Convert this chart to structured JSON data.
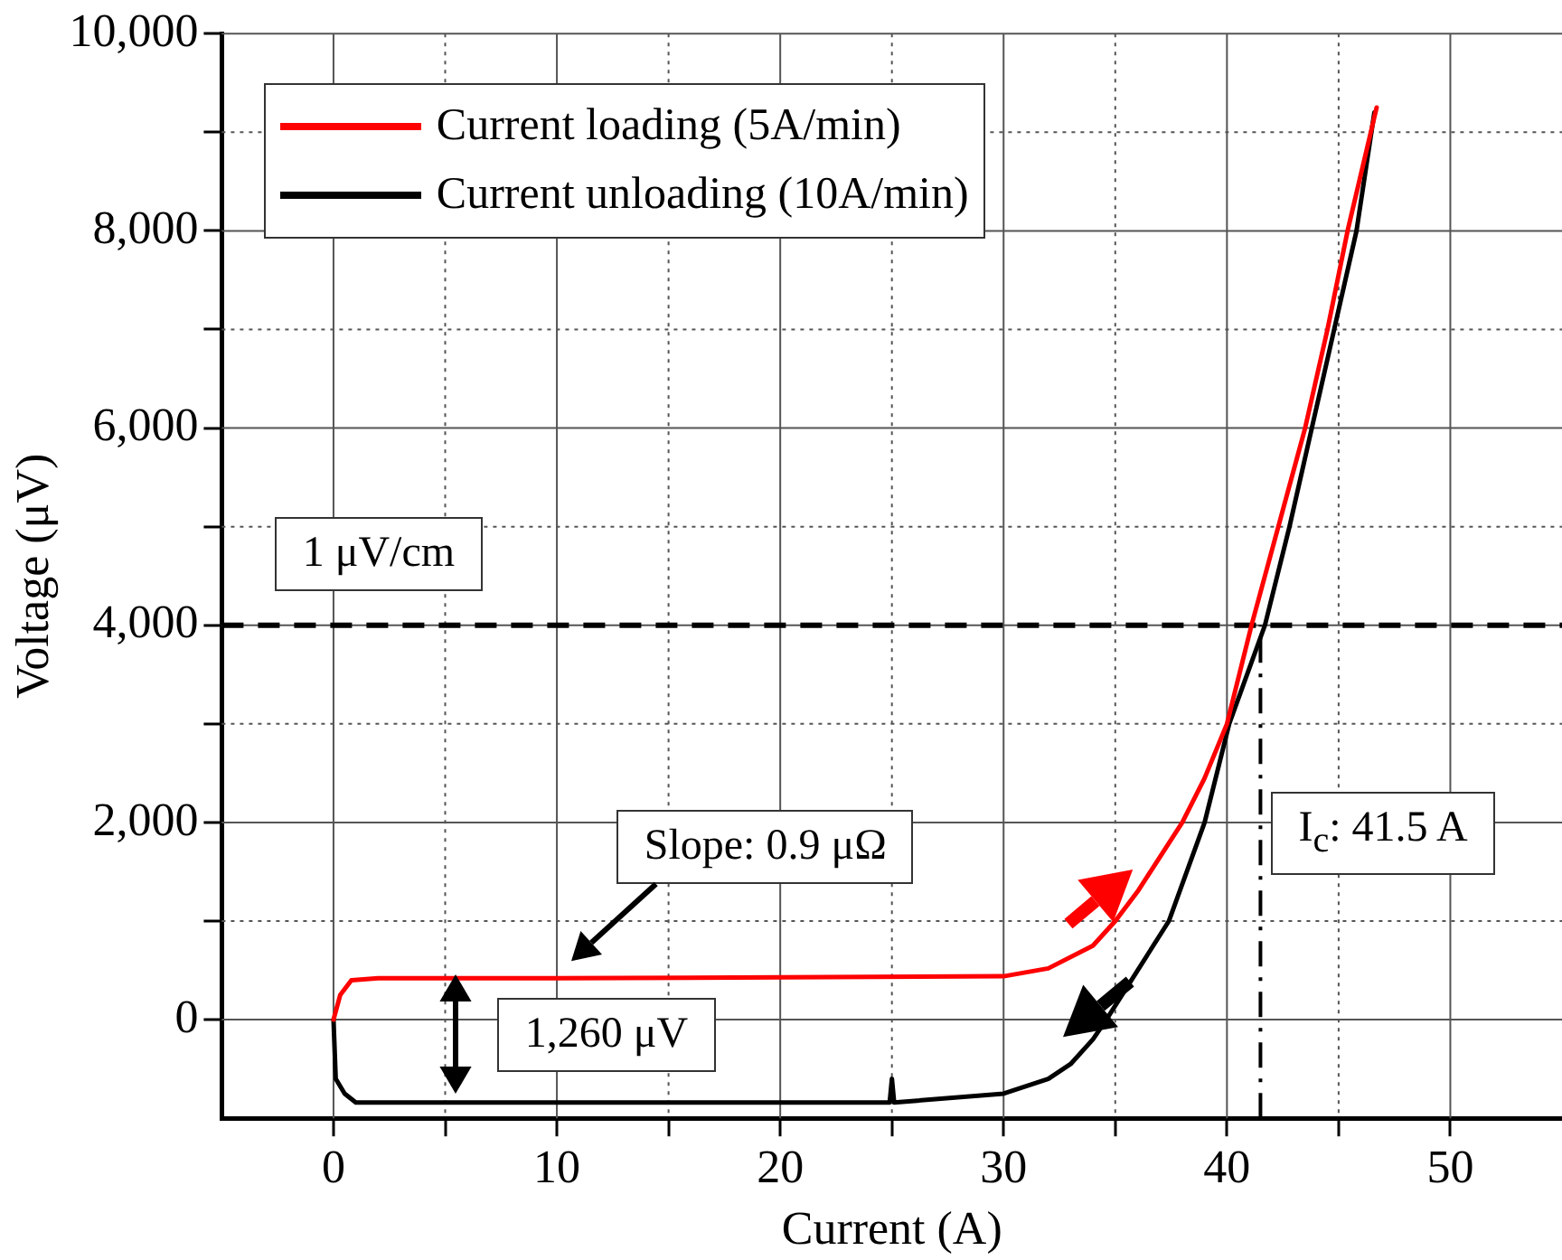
{
  "chart_data": {
    "type": "line",
    "xlabel": "Current (A)",
    "ylabel": "Voltage (μV)",
    "xlim": [
      -5,
      55
    ],
    "ylim": [
      -1000,
      10000
    ],
    "xticks": [
      0,
      {
        "value": 5,
        "label": null
      },
      10,
      {
        "value": 15,
        "label": null
      },
      20,
      {
        "value": 25,
        "label": null
      },
      30,
      {
        "value": 35,
        "label": null
      },
      40,
      {
        "value": 45,
        "label": null
      },
      50
    ],
    "yticks": [
      0,
      {
        "value": 1000,
        "label": null
      },
      {
        "value": 2000,
        "label": "2,000"
      },
      {
        "value": 3000,
        "label": null
      },
      {
        "value": 4000,
        "label": "4,000"
      },
      {
        "value": 5000,
        "label": null
      },
      {
        "value": 6000,
        "label": "6,000"
      },
      {
        "value": 7000,
        "label": null
      },
      {
        "value": 8000,
        "label": "8,000"
      },
      {
        "value": 9000,
        "label": null
      },
      {
        "value": 10000,
        "label": "10,000"
      }
    ],
    "grid": true,
    "legend": "top left",
    "marker": "none",
    "line_style": "solid",
    "series": [
      {
        "name": "Current loading (5A/min)",
        "color": "#ff0000",
        "x": [
          0,
          0.3,
          0.8,
          2,
          10,
          20,
          30,
          32,
          34,
          35,
          36,
          37,
          38,
          39,
          40,
          41.1,
          42.3,
          43.5,
          44.5,
          45.4,
          46.7
        ],
        "values": [
          0,
          250,
          400,
          420,
          420,
          430,
          440,
          520,
          750,
          1000,
          1300,
          1650,
          2000,
          2450,
          3000,
          4000,
          5000,
          6000,
          7000,
          8000,
          9250
        ]
      },
      {
        "name": "Current unloading (10A/min)",
        "color": "#000000",
        "x": [
          0,
          0.1,
          0.5,
          1,
          10,
          24.9,
          25,
          25.1,
          30,
          32,
          33,
          34,
          34.6,
          36,
          37.4,
          39,
          40.1,
          41.7,
          42.8,
          43.8,
          44.8,
          45.8,
          46.6
        ],
        "values": [
          0,
          -600,
          -750,
          -840,
          -840,
          -840,
          -600,
          -840,
          -750,
          -600,
          -450,
          -200,
          0,
          500,
          1000,
          2000,
          3000,
          4000,
          5000,
          6000,
          7000,
          8000,
          9200
        ]
      }
    ],
    "ref_lines": [
      {
        "axis": "y",
        "value": 4000,
        "label": "1 μV/cm",
        "color": "#000000",
        "line_style": "dashed"
      },
      {
        "axis": "x",
        "value": 41.5,
        "label": "I$_{c}$: 41.5 A",
        "color": "#000000",
        "line_style": "dashdot"
      }
    ],
    "annotations": [
      "Slope: 0.9 μΩ",
      "1,260 μV"
    ]
  }
}
